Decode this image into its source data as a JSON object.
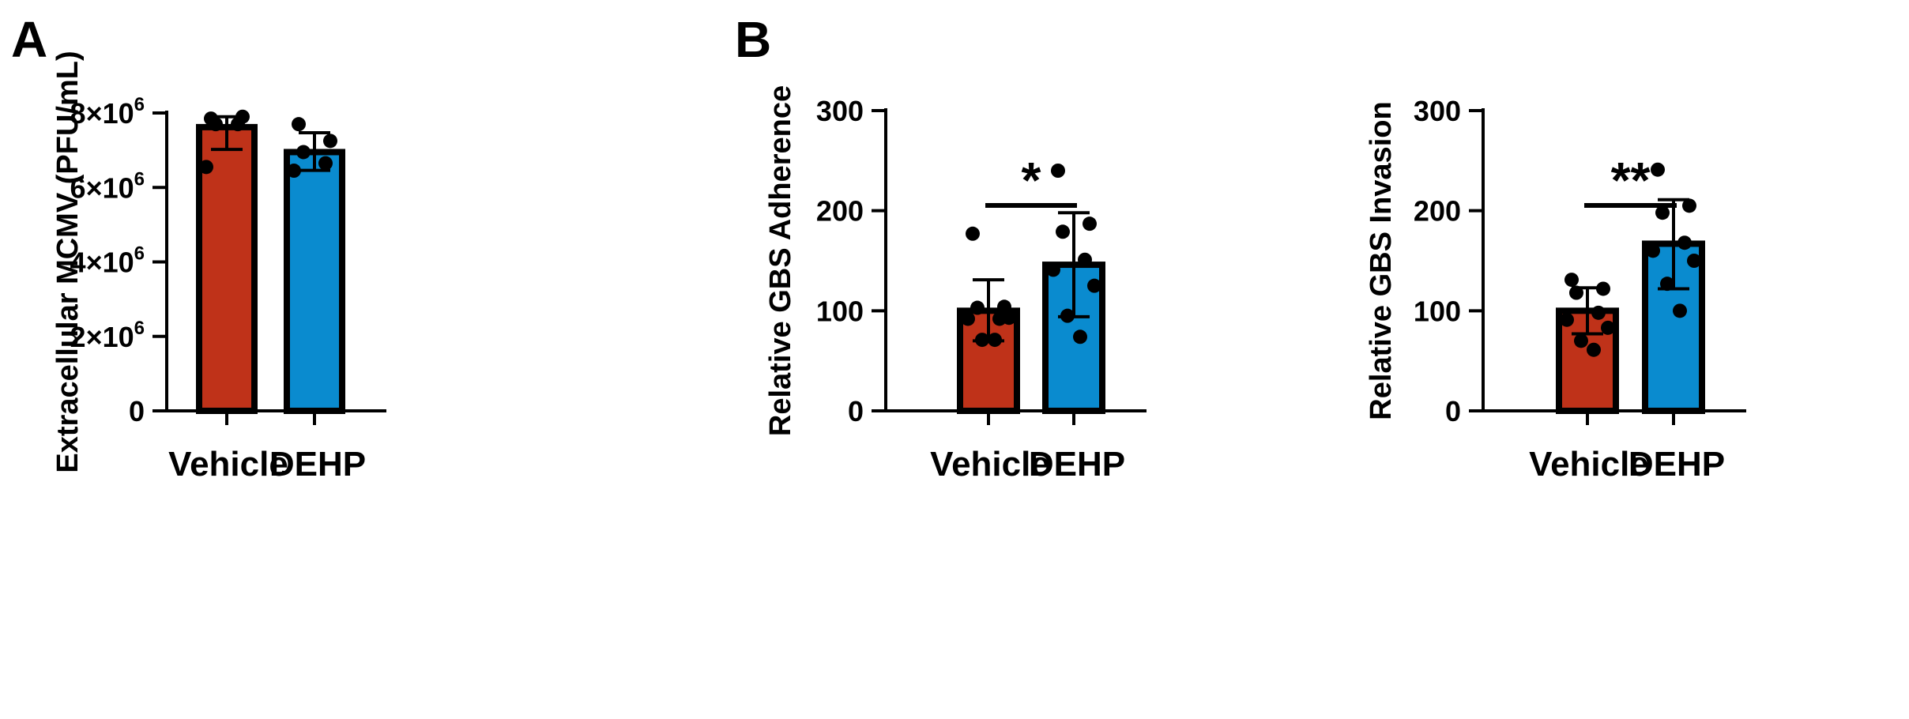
{
  "panels": [
    {
      "letter": "A"
    },
    {
      "letter": "B"
    }
  ],
  "colors": {
    "vehicle": "#BF3219",
    "dehp": "#0A8BCF",
    "outline": "#000000"
  },
  "chart_data": [
    {
      "type": "bar",
      "panel": "A",
      "ylabel": "Extracellular MCMV (PFU/mL)",
      "ylim": [
        0,
        8000000
      ],
      "yticks": [
        {
          "value": 0,
          "label": "0"
        },
        {
          "value": 2000000,
          "label": "2×10",
          "exp": "6"
        },
        {
          "value": 4000000,
          "label": "4×10",
          "exp": "6"
        },
        {
          "value": 6000000,
          "label": "6×10",
          "exp": "6"
        },
        {
          "value": 8000000,
          "label": "8×10",
          "exp": "6"
        }
      ],
      "categories": [
        "Vehicle",
        "DEHP"
      ],
      "values": [
        7620000,
        6950000
      ],
      "error": [
        [
          7020000,
          7900000
        ],
        [
          6460000,
          7470000
        ]
      ],
      "points": [
        [
          7850000,
          7900000,
          7700000,
          7700000,
          6550000
        ],
        [
          7700000,
          7250000,
          6950000,
          6650000,
          6450000
        ]
      ],
      "significance": null
    },
    {
      "type": "bar",
      "panel": "B",
      "ylabel": "Relative GBS Adherence",
      "ylim": [
        0,
        300
      ],
      "yticks": [
        {
          "value": 0,
          "label": "0"
        },
        {
          "value": 100,
          "label": "100"
        },
        {
          "value": 200,
          "label": "200"
        },
        {
          "value": 300,
          "label": "300"
        }
      ],
      "categories": [
        "Vehicle",
        "DEHP"
      ],
      "values": [
        100,
        146
      ],
      "error": [
        [
          70,
          131
        ],
        [
          94,
          198
        ]
      ],
      "points": [
        [
          177,
          104,
          103,
          92,
          92,
          93,
          71,
          71
        ],
        [
          240,
          187,
          179,
          151,
          141,
          125,
          95,
          74
        ]
      ],
      "significance": "*"
    },
    {
      "type": "bar",
      "panel": "B",
      "ylabel": "Relative GBS Invasion",
      "ylim": [
        0,
        300
      ],
      "yticks": [
        {
          "value": 0,
          "label": "0"
        },
        {
          "value": 100,
          "label": "100"
        },
        {
          "value": 200,
          "label": "200"
        },
        {
          "value": 300,
          "label": "300"
        }
      ],
      "categories": [
        "Vehicle",
        "DEHP"
      ],
      "values": [
        100,
        167
      ],
      "error": [
        [
          77,
          123
        ],
        [
          122,
          211
        ]
      ],
      "points": [
        [
          131,
          122,
          118,
          98,
          91,
          83,
          70,
          61
        ],
        [
          241,
          205,
          198,
          168,
          160,
          150,
          127,
          100
        ]
      ],
      "significance": "**"
    }
  ]
}
